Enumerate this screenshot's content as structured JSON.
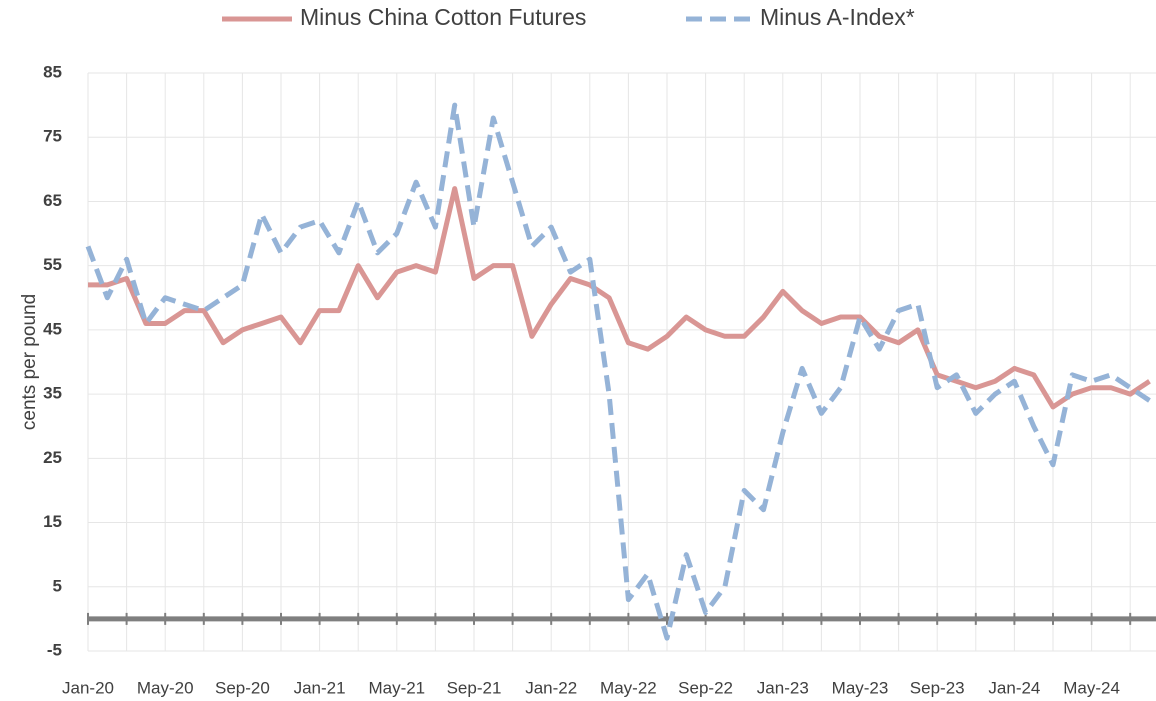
{
  "chart_data": {
    "type": "line",
    "y_label": "cents per pound",
    "categories": [
      "Jan-20",
      null,
      null,
      null,
      "May-20",
      null,
      null,
      null,
      "Sep-20",
      null,
      null,
      null,
      "Jan-21",
      null,
      null,
      null,
      "May-21",
      null,
      null,
      null,
      "Sep-21",
      null,
      null,
      null,
      "Jan-22",
      null,
      null,
      null,
      "May-22",
      null,
      null,
      null,
      "Sep-22",
      null,
      null,
      null,
      "Jan-23",
      null,
      null,
      null,
      "May-23",
      null,
      null,
      null,
      "Sep-23",
      null,
      null,
      null,
      "Jan-24",
      null,
      null,
      null,
      "May-24",
      null,
      null,
      null
    ],
    "series": [
      {
        "name": "Minus China Cotton Futures",
        "color": "#d99694",
        "dash": false,
        "values": [
          52,
          52,
          53,
          46,
          46,
          48,
          48,
          43,
          45,
          46,
          47,
          43,
          48,
          48,
          55,
          50,
          54,
          55,
          54,
          67,
          53,
          55,
          55,
          44,
          49,
          53,
          52,
          50,
          43,
          42,
          44,
          47,
          45,
          44,
          44,
          47,
          51,
          48,
          46,
          47,
          47,
          44,
          43,
          45,
          38,
          37,
          36,
          37,
          39,
          38,
          33,
          35,
          36,
          36,
          35,
          37
        ]
      },
      {
        "name": "Minus A-Index*",
        "color": "#95b3d7",
        "dash": true,
        "values": [
          58,
          50,
          56,
          46,
          50,
          49,
          48,
          50,
          52,
          63,
          57,
          61,
          62,
          57,
          65,
          57,
          60,
          68,
          61,
          80,
          61,
          78,
          68,
          58,
          61,
          54,
          56,
          35,
          3,
          7,
          -3,
          10,
          1,
          5,
          20,
          17,
          29,
          39,
          32,
          36,
          47,
          42,
          48,
          49,
          36,
          38,
          32,
          35,
          37,
          30,
          24,
          38,
          37,
          38,
          36,
          34
        ]
      }
    ],
    "ylim": [
      -5,
      85
    ],
    "yticks": [
      -5,
      5,
      15,
      25,
      35,
      45,
      55,
      65,
      75,
      85
    ],
    "grid": true,
    "zero_line": 0,
    "legend": "top"
  }
}
